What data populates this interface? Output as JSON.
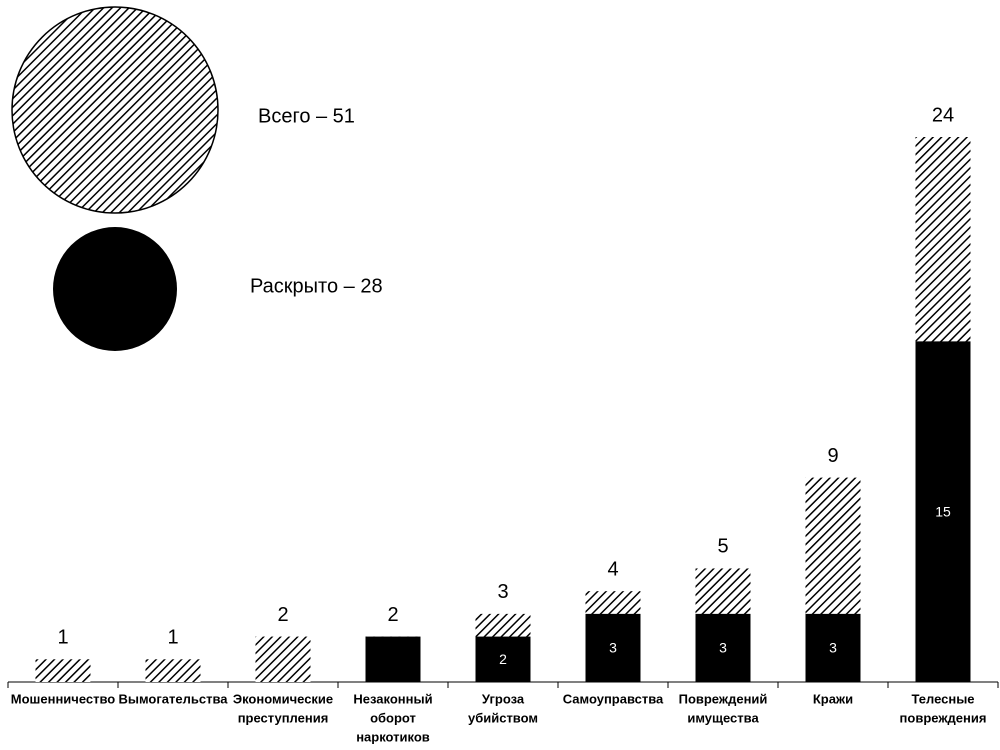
{
  "chart_data": {
    "type": "bar",
    "categories": [
      [
        "Мошенничество"
      ],
      [
        "Вымогательства"
      ],
      [
        "Экономические",
        "преступления"
      ],
      [
        "Незаконный",
        "оборот",
        "наркотиков"
      ],
      [
        "Угроза",
        "убийством"
      ],
      [
        "Самоуправства"
      ],
      [
        "Повреждений",
        "имущества"
      ],
      [
        "Кражи"
      ],
      [
        "Телесные",
        "повреждения"
      ]
    ],
    "series": [
      {
        "name": "Всего – 51",
        "color": "hatch",
        "values": [
          1,
          1,
          2,
          2,
          3,
          4,
          5,
          9,
          24
        ]
      },
      {
        "name": "Раскрыто – 28",
        "color": "#000000",
        "values": [
          null,
          null,
          null,
          2,
          2,
          3,
          3,
          3,
          15
        ]
      }
    ]
  }
}
